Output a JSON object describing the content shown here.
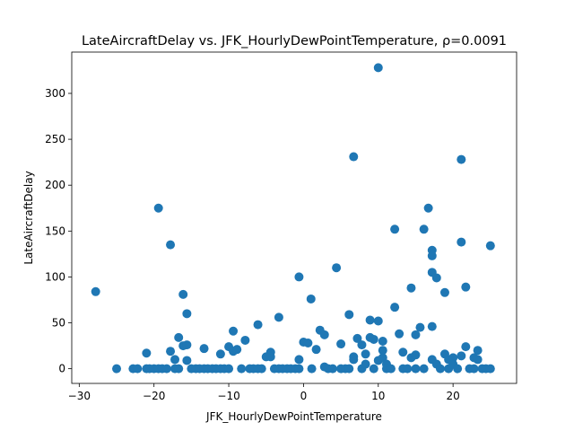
{
  "chart_data": {
    "type": "scatter",
    "title": "LateAircraftDelay vs. JFK_HourlyDewPointTemperature, ρ=0.0091",
    "xlabel": "JFK_HourlyDewPointTemperature",
    "ylabel": "LateAircraftDelay",
    "xlim": [
      -31,
      28.5
    ],
    "ylim": [
      -16,
      345
    ],
    "xticks": [
      -30,
      -20,
      -10,
      0,
      10,
      20
    ],
    "yticks": [
      0,
      50,
      100,
      150,
      200,
      250,
      300
    ],
    "grid": false,
    "legend": "none",
    "marker_color": "#1f77b4",
    "series": [
      {
        "points": [
          [
            -27.8,
            84
          ],
          [
            -25,
            0
          ],
          [
            -22.8,
            0
          ],
          [
            -22.2,
            0
          ],
          [
            -21,
            17
          ],
          [
            -21,
            0
          ],
          [
            -20.6,
            0
          ],
          [
            -20,
            0
          ],
          [
            -19.4,
            175
          ],
          [
            -19.4,
            0
          ],
          [
            -18.9,
            0
          ],
          [
            -18.3,
            0
          ],
          [
            -17.8,
            135
          ],
          [
            -17.8,
            19
          ],
          [
            -17.2,
            0
          ],
          [
            -17.2,
            10
          ],
          [
            -16.7,
            34
          ],
          [
            -16.7,
            0
          ],
          [
            -16.1,
            81
          ],
          [
            -16.1,
            25
          ],
          [
            -15.6,
            60
          ],
          [
            -15.6,
            26
          ],
          [
            -15.6,
            9
          ],
          [
            -15,
            0
          ],
          [
            -14.4,
            0
          ],
          [
            -13.9,
            0
          ],
          [
            -13.3,
            22
          ],
          [
            -13.3,
            0
          ],
          [
            -12.8,
            0
          ],
          [
            -12.2,
            0
          ],
          [
            -11.7,
            0
          ],
          [
            -11.1,
            16
          ],
          [
            -11.1,
            0
          ],
          [
            -10.6,
            0
          ],
          [
            -10,
            24
          ],
          [
            -10,
            0
          ],
          [
            -9.4,
            41
          ],
          [
            -9.4,
            19
          ],
          [
            -8.9,
            21
          ],
          [
            -8.3,
            0
          ],
          [
            -7.8,
            31
          ],
          [
            -7.2,
            0
          ],
          [
            -6.7,
            0
          ],
          [
            -6.1,
            48
          ],
          [
            -6.1,
            0
          ],
          [
            -5.6,
            0
          ],
          [
            -5,
            13
          ],
          [
            -4.4,
            18
          ],
          [
            -4.4,
            13
          ],
          [
            -3.9,
            0
          ],
          [
            -3.3,
            56
          ],
          [
            -3.3,
            0
          ],
          [
            -2.8,
            0
          ],
          [
            -2.2,
            0
          ],
          [
            -1.7,
            0
          ],
          [
            -1.1,
            0
          ],
          [
            -0.6,
            100
          ],
          [
            -0.6,
            10
          ],
          [
            -0.6,
            0
          ],
          [
            0,
            29
          ],
          [
            0.6,
            28
          ],
          [
            1,
            76
          ],
          [
            1.1,
            0
          ],
          [
            1.7,
            21
          ],
          [
            2.2,
            42
          ],
          [
            2.8,
            37
          ],
          [
            2.8,
            2
          ],
          [
            3.3,
            0
          ],
          [
            3.9,
            0
          ],
          [
            4.4,
            110
          ],
          [
            5,
            27
          ],
          [
            5,
            0
          ],
          [
            5.6,
            0
          ],
          [
            6.1,
            59
          ],
          [
            6.1,
            0
          ],
          [
            6.7,
            231
          ],
          [
            6.7,
            13
          ],
          [
            6.7,
            10
          ],
          [
            7.2,
            33
          ],
          [
            7.8,
            26
          ],
          [
            7.8,
            0
          ],
          [
            8.3,
            16
          ],
          [
            8.3,
            5
          ],
          [
            8.9,
            53
          ],
          [
            8.9,
            34
          ],
          [
            9.4,
            32
          ],
          [
            9.4,
            0
          ],
          [
            10,
            328
          ],
          [
            10,
            52
          ],
          [
            10,
            9
          ],
          [
            10.6,
            30
          ],
          [
            10.6,
            20
          ],
          [
            10.6,
            12
          ],
          [
            11.1,
            5
          ],
          [
            11.1,
            0
          ],
          [
            11.7,
            0
          ],
          [
            12.2,
            152
          ],
          [
            12.2,
            67
          ],
          [
            12.8,
            38
          ],
          [
            13.3,
            18
          ],
          [
            13.3,
            0
          ],
          [
            13.9,
            0
          ],
          [
            14.4,
            88
          ],
          [
            14.4,
            12
          ],
          [
            15,
            37
          ],
          [
            15,
            15
          ],
          [
            15,
            0
          ],
          [
            15.6,
            45
          ],
          [
            16.1,
            152
          ],
          [
            16.1,
            0
          ],
          [
            16.7,
            175
          ],
          [
            17.2,
            129
          ],
          [
            17.2,
            123
          ],
          [
            17.2,
            105
          ],
          [
            17.2,
            46
          ],
          [
            17.2,
            10
          ],
          [
            17.8,
            99
          ],
          [
            17.8,
            5
          ],
          [
            18.3,
            0
          ],
          [
            18.9,
            83
          ],
          [
            18.9,
            16
          ],
          [
            19.4,
            10
          ],
          [
            19.4,
            0
          ],
          [
            20,
            12
          ],
          [
            20,
            5
          ],
          [
            20.6,
            0
          ],
          [
            21.1,
            228
          ],
          [
            21.1,
            138
          ],
          [
            21.1,
            14
          ],
          [
            21.7,
            89
          ],
          [
            21.7,
            24
          ],
          [
            22.2,
            0
          ],
          [
            22.8,
            12
          ],
          [
            22.8,
            0
          ],
          [
            23.3,
            20
          ],
          [
            23.3,
            10
          ],
          [
            23.9,
            0
          ],
          [
            24.4,
            0
          ],
          [
            25,
            134
          ],
          [
            25,
            0
          ]
        ]
      }
    ]
  }
}
